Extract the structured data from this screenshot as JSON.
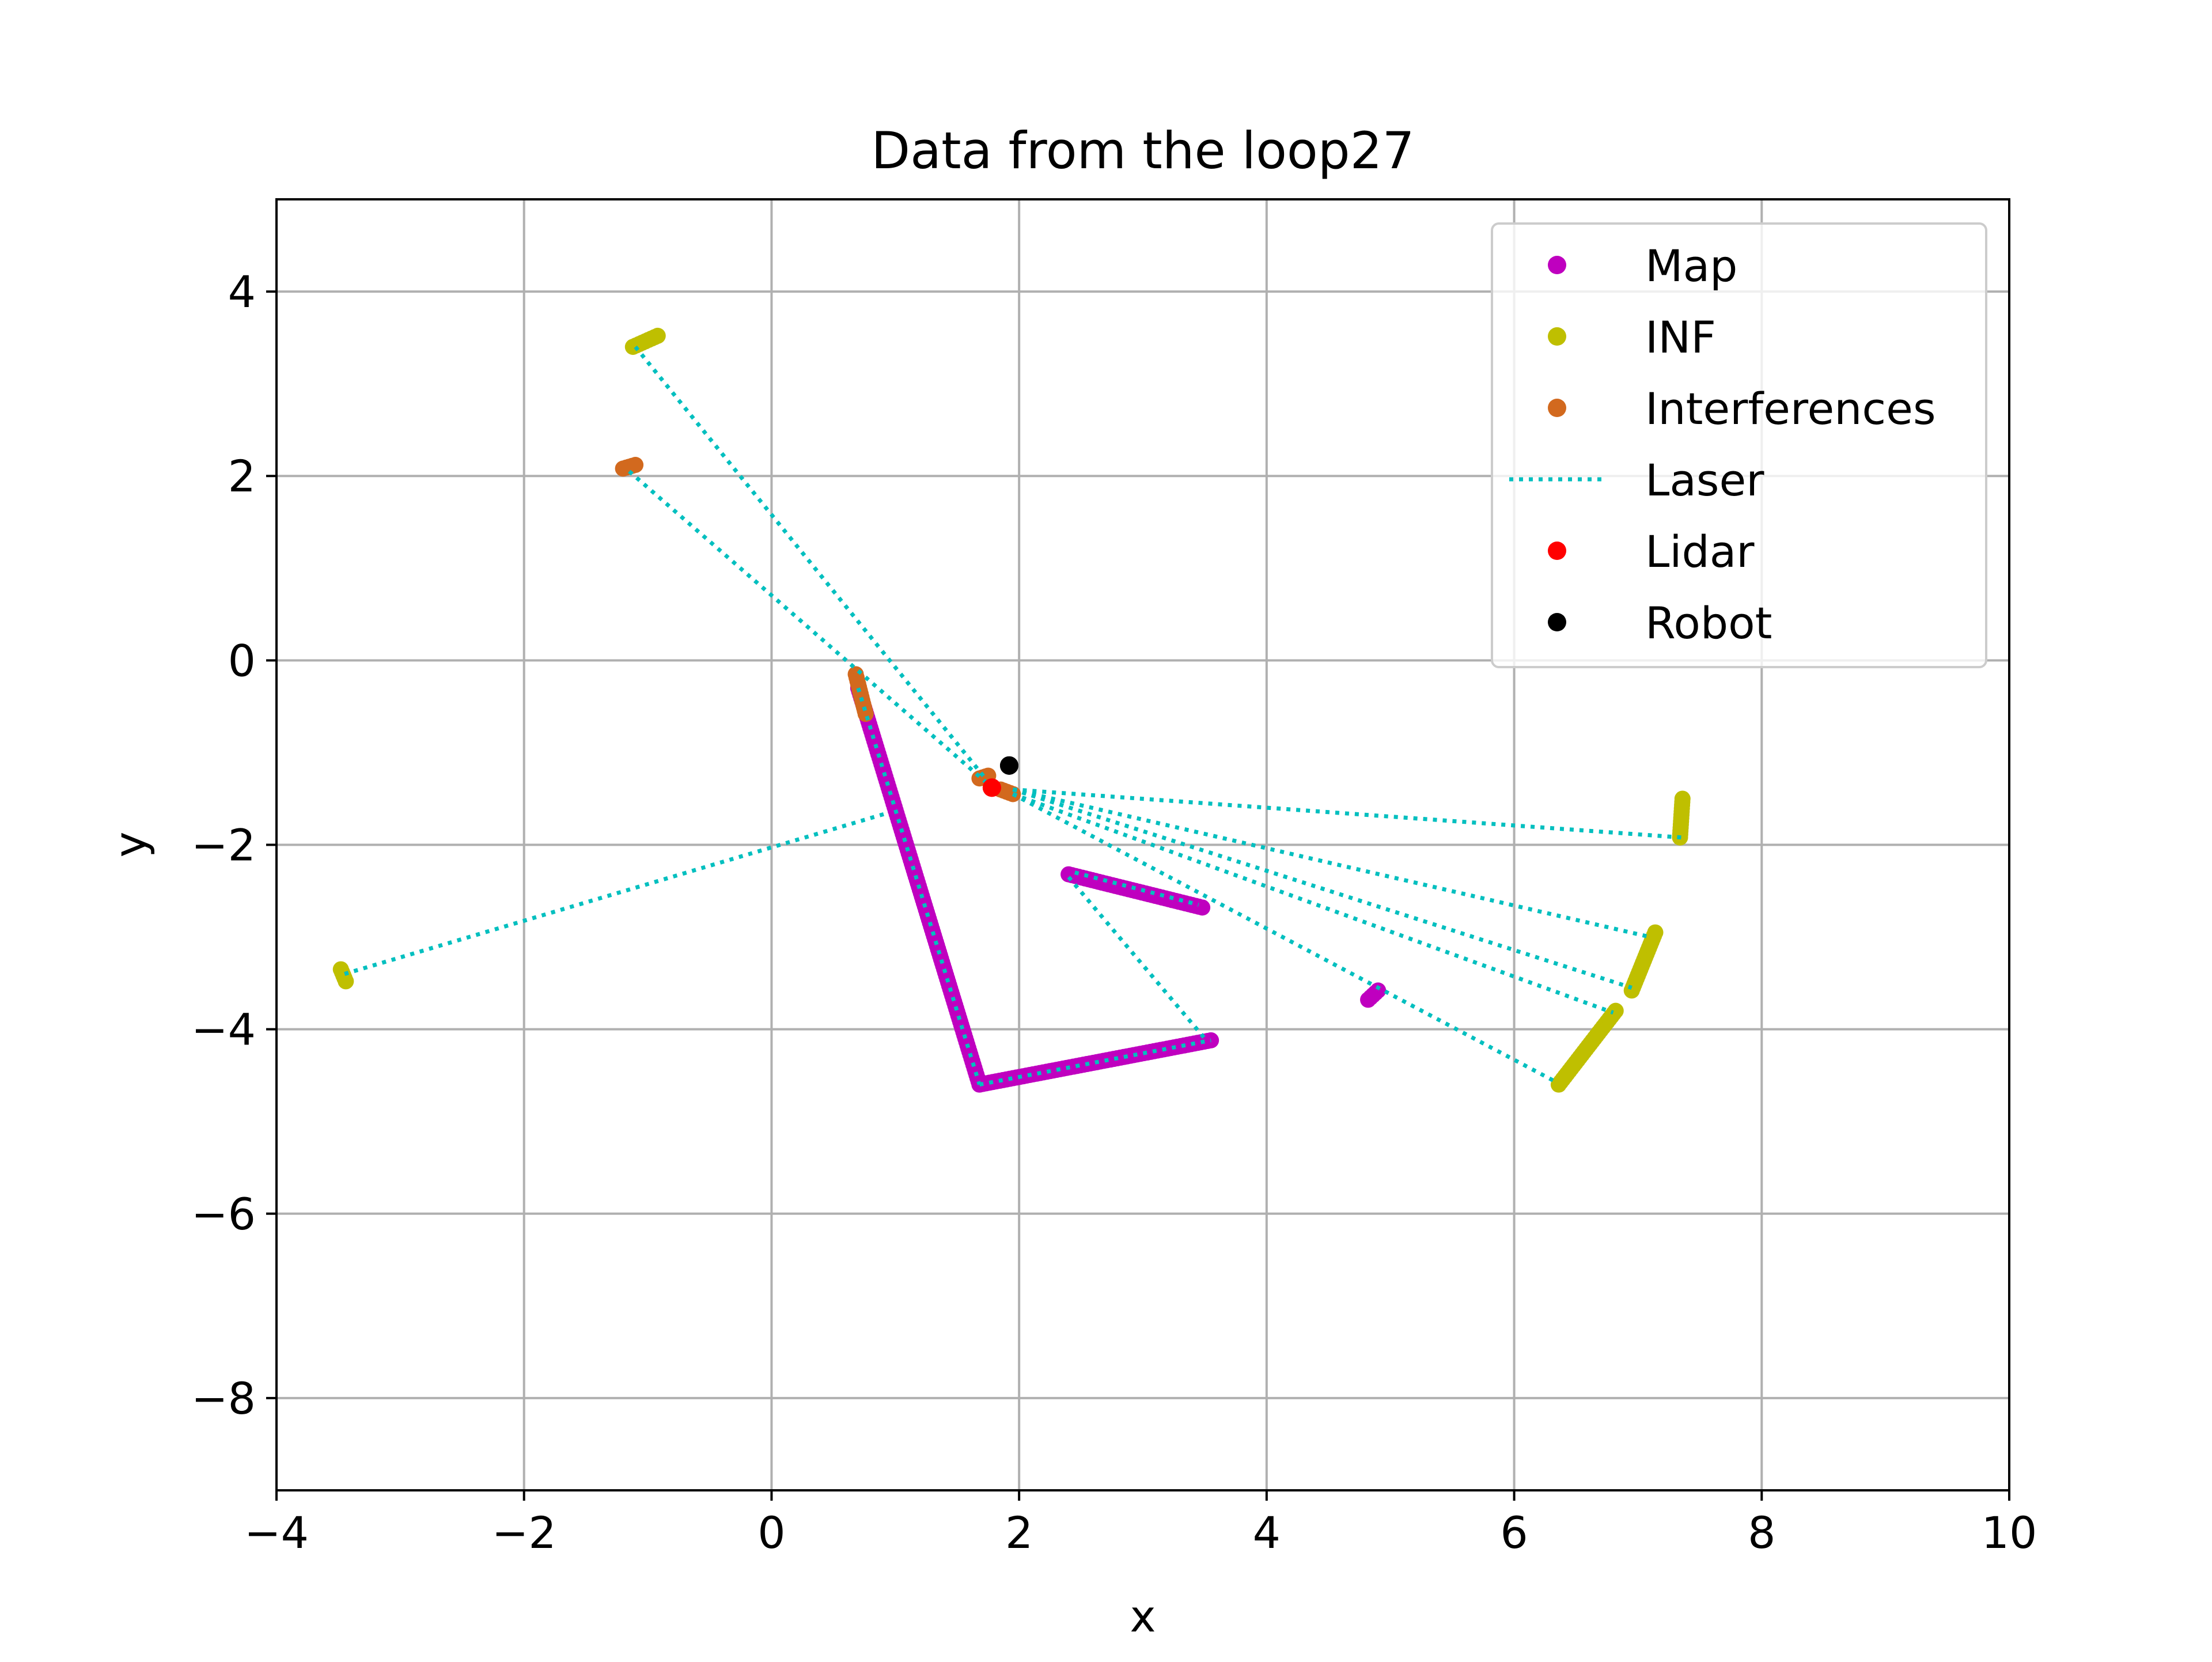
{
  "chart_data": {
    "type": "scatter",
    "title": "Data from the loop27",
    "xlabel": "x",
    "ylabel": "y",
    "xlim": [
      -4,
      10
    ],
    "ylim": [
      -9,
      5
    ],
    "x_ticks": [
      -4,
      -2,
      0,
      2,
      4,
      6,
      8,
      10
    ],
    "y_ticks": [
      -8,
      -6,
      -4,
      -2,
      0,
      2,
      4
    ],
    "x_tick_labels": [
      "−4",
      "−2",
      "0",
      "2",
      "4",
      "6",
      "8",
      "10"
    ],
    "y_tick_labels": [
      "−8",
      "−6",
      "−4",
      "−2",
      "0",
      "2",
      "4"
    ],
    "grid": true,
    "legend_position": "top-right",
    "colors": {
      "map": "#bf00bf",
      "inf": "#bfbf00",
      "interferences": "#d2691e",
      "laser": "#00bfbf",
      "lidar": "#ff0000",
      "robot": "#000000",
      "grid": "#b0b0b0"
    },
    "series": [
      {
        "name": "Map",
        "kind": "points",
        "color": "#bf00bf",
        "segments": [
          [
            [
              0.7,
              -0.3
            ],
            [
              1.68,
              -4.6
            ]
          ],
          [
            [
              1.68,
              -4.6
            ],
            [
              3.55,
              -4.12
            ]
          ],
          [
            [
              2.4,
              -2.32
            ],
            [
              3.48,
              -2.68
            ]
          ],
          [
            [
              4.82,
              -3.68
            ],
            [
              4.9,
              -3.58
            ]
          ]
        ]
      },
      {
        "name": "INF",
        "kind": "points",
        "color": "#bfbf00",
        "segments": [
          [
            [
              -1.12,
              3.4
            ],
            [
              -0.92,
              3.52
            ]
          ],
          [
            [
              -3.48,
              -3.35
            ],
            [
              -3.44,
              -3.48
            ]
          ],
          [
            [
              7.36,
              -1.5
            ],
            [
              7.34,
              -1.92
            ]
          ],
          [
            [
              7.14,
              -2.95
            ],
            [
              6.95,
              -3.58
            ]
          ],
          [
            [
              6.82,
              -3.8
            ],
            [
              6.36,
              -4.6
            ]
          ]
        ]
      },
      {
        "name": "Interferences",
        "kind": "points",
        "color": "#d2691e",
        "segments": [
          [
            [
              -1.2,
              2.08
            ],
            [
              -1.1,
              2.12
            ]
          ],
          [
            [
              0.68,
              -0.15
            ],
            [
              0.76,
              -0.58
            ]
          ],
          [
            [
              1.68,
              -1.28
            ],
            [
              1.75,
              -1.25
            ]
          ],
          [
            [
              1.85,
              -1.4
            ],
            [
              1.95,
              -1.45
            ]
          ]
        ]
      },
      {
        "name": "Laser",
        "kind": "line",
        "color": "#00bfbf",
        "segments": [
          [
            [
              -1.1,
              3.4
            ],
            [
              1.8,
              -1.4
            ]
          ],
          [
            [
              -1.15,
              2.05
            ],
            [
              1.8,
              -1.4
            ]
          ],
          [
            [
              -3.45,
              -3.4
            ],
            [
              0.95,
              -1.65
            ]
          ],
          [
            [
              1.95,
              -1.4
            ],
            [
              7.35,
              -1.92
            ]
          ],
          [
            [
              1.95,
              -1.4
            ],
            [
              7.1,
              -3.0
            ]
          ],
          [
            [
              1.95,
              -1.4
            ],
            [
              6.95,
              -3.55
            ]
          ],
          [
            [
              1.95,
              -1.45
            ],
            [
              6.8,
              -3.82
            ]
          ],
          [
            [
              1.95,
              -1.45
            ],
            [
              6.35,
              -4.58
            ]
          ],
          [
            [
              0.7,
              -0.3
            ],
            [
              1.68,
              -4.6
            ]
          ],
          [
            [
              1.68,
              -4.6
            ],
            [
              3.55,
              -4.12
            ]
          ],
          [
            [
              2.45,
              -2.3
            ],
            [
              3.45,
              -2.65
            ]
          ],
          [
            [
              2.4,
              -2.35
            ],
            [
              3.5,
              -4.1
            ]
          ]
        ]
      },
      {
        "name": "Lidar",
        "kind": "points",
        "color": "#ff0000",
        "segments": [
          [
            [
              1.78,
              -1.38
            ],
            [
              1.78,
              -1.38
            ]
          ]
        ]
      },
      {
        "name": "Robot",
        "kind": "points",
        "color": "#000000",
        "segments": [
          [
            [
              1.92,
              -1.14
            ],
            [
              1.92,
              -1.14
            ]
          ]
        ]
      }
    ]
  }
}
